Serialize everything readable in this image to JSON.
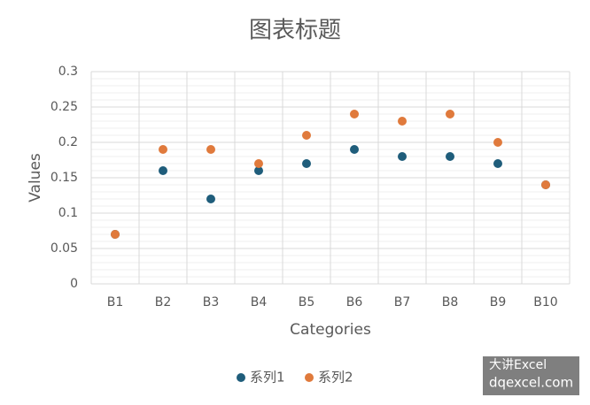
{
  "chart_data": {
    "type": "scatter",
    "title": "图表标题",
    "x_label": "Categories",
    "y_label": "Values",
    "categories": [
      "B1",
      "B2",
      "B3",
      "B4",
      "B5",
      "B6",
      "B7",
      "B8",
      "B9",
      "B10"
    ],
    "series": [
      {
        "name": "系列1",
        "color": "#1f5d7b",
        "values": [
          0.07,
          0.16,
          0.12,
          0.16,
          0.17,
          0.19,
          0.18,
          0.18,
          0.17,
          0.14
        ]
      },
      {
        "name": "系列2",
        "color": "#e07a3c",
        "values": [
          0.07,
          0.19,
          0.19,
          0.17,
          0.21,
          0.24,
          0.23,
          0.24,
          0.2,
          0.14
        ]
      }
    ],
    "ylim": [
      0,
      0.3
    ],
    "yticks": [
      0,
      0.05,
      0.1,
      0.15,
      0.2,
      0.25,
      0.3
    ],
    "grid": true,
    "minor_grid": true,
    "legend": "bottom",
    "watermark": [
      "大讲Excel",
      "dqexcel.com"
    ]
  }
}
